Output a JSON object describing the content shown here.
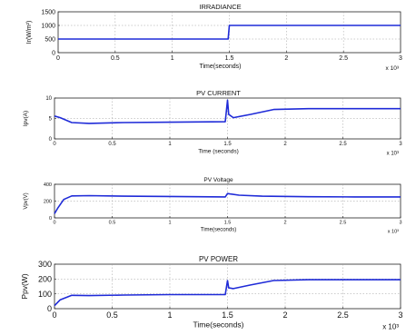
{
  "chart_data": [
    {
      "type": "line",
      "title": "IRRADIANCE",
      "xlabel": "Time(seconds)",
      "ylabel": "Ir(W/m²)",
      "xlim": [
        0,
        3
      ],
      "ylim": [
        0,
        1500
      ],
      "x_ticks": [
        "0",
        "0.5",
        "1",
        "1.5",
        "2",
        "2.5",
        "3"
      ],
      "y_ticks": [
        "0",
        "500",
        "1000",
        "1500"
      ],
      "x_exponent_label": "x 10³",
      "grid": true,
      "series_color": "#1f2bd8",
      "series": [
        {
          "x": [
            0,
            1.49,
            1.5,
            1.51,
            3
          ],
          "y": [
            500,
            500,
            1000,
            1000,
            1000
          ]
        }
      ]
    },
    {
      "type": "line",
      "title": "PV CURRENT",
      "xlabel": "Time (seconds)",
      "ylabel": "Ipv(A)",
      "xlim": [
        0,
        3
      ],
      "ylim": [
        0,
        10
      ],
      "x_ticks": [
        "0",
        "0.5",
        "1",
        "1.5",
        "2",
        "2.5",
        "3"
      ],
      "y_ticks": [
        "0",
        "5",
        "10"
      ],
      "x_exponent_label": "x 10³",
      "grid": true,
      "series_color": "#1f2bd8",
      "series": [
        {
          "x": [
            0,
            0.05,
            0.15,
            0.3,
            0.6,
            1.0,
            1.48,
            1.5,
            1.51,
            1.55,
            1.7,
            1.9,
            2.2,
            2.6,
            3.0
          ],
          "y": [
            5.6,
            5.2,
            4.0,
            3.8,
            4.0,
            4.1,
            4.2,
            9.5,
            6.0,
            5.2,
            6.0,
            7.2,
            7.4,
            7.4,
            7.4
          ]
        }
      ]
    },
    {
      "type": "line",
      "title": "PV Voltage",
      "xlabel": "Time(seconds)",
      "ylabel": "Vpv(V)",
      "xlim": [
        0,
        3
      ],
      "ylim": [
        0,
        400
      ],
      "x_ticks": [
        "0",
        "0.5",
        "1",
        "1.5",
        "2",
        "2.5",
        "3"
      ],
      "y_ticks": [
        "0",
        "200",
        "400"
      ],
      "x_exponent_label": "x 10³",
      "grid": true,
      "series_color": "#1f2bd8",
      "series": [
        {
          "x": [
            0,
            0.03,
            0.08,
            0.15,
            0.3,
            0.6,
            1.0,
            1.48,
            1.5,
            1.52,
            1.6,
            1.8,
            2.2,
            2.6,
            3.0
          ],
          "y": [
            50,
            120,
            220,
            262,
            265,
            258,
            255,
            250,
            290,
            285,
            270,
            258,
            252,
            250,
            250
          ]
        }
      ]
    },
    {
      "type": "line",
      "title": "PV POWER",
      "xlabel": "Time(seconds)",
      "ylabel": "Ppv(W)",
      "xlim": [
        0,
        3
      ],
      "ylim": [
        0,
        300
      ],
      "x_ticks": [
        "0",
        "0.5",
        "1",
        "1.5",
        "2",
        "2.5",
        "3"
      ],
      "y_ticks": [
        "0",
        "100",
        "200",
        "300"
      ],
      "x_exponent_label": "x 10³",
      "grid": true,
      "series_color": "#1f2bd8",
      "series": [
        {
          "x": [
            0,
            0.05,
            0.15,
            0.3,
            0.6,
            1.0,
            1.48,
            1.5,
            1.51,
            1.55,
            1.7,
            1.9,
            2.2,
            2.6,
            3.0
          ],
          "y": [
            20,
            60,
            90,
            88,
            92,
            95,
            95,
            190,
            140,
            135,
            160,
            190,
            195,
            195,
            195
          ]
        }
      ]
    }
  ]
}
